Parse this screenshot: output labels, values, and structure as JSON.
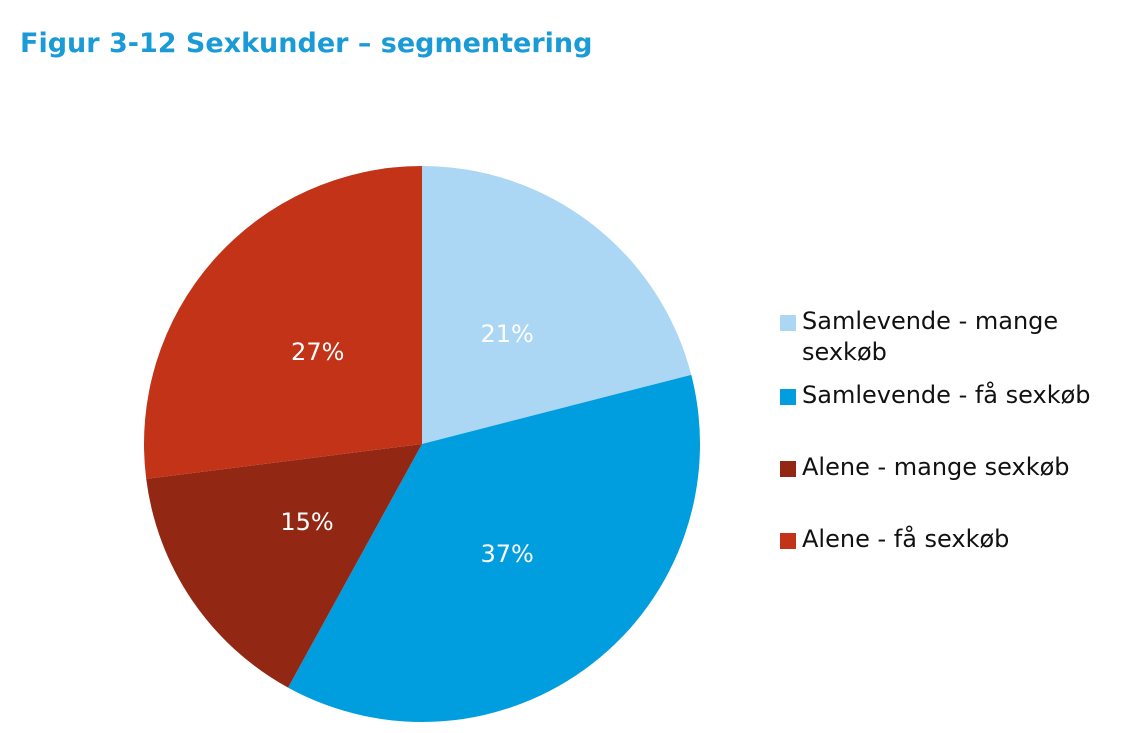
{
  "chart_data": {
    "type": "pie",
    "title": "Figur 3-12 Sexkunder – segmentering",
    "slices": [
      {
        "label": "Samlevende - mange sexkøb",
        "value": 21,
        "display": "21%",
        "color": "#abd6f4"
      },
      {
        "label": "Samlevende - få sexkøb",
        "value": 37,
        "display": "37%",
        "color": "#009ddf"
      },
      {
        "label": "Alene - mange sexkøb",
        "value": 15,
        "display": "15%",
        "color": "#922714"
      },
      {
        "label": "Alene - få sexkøb",
        "value": 27,
        "display": "27%",
        "color": "#c23318"
      }
    ],
    "legend_position": "right"
  }
}
